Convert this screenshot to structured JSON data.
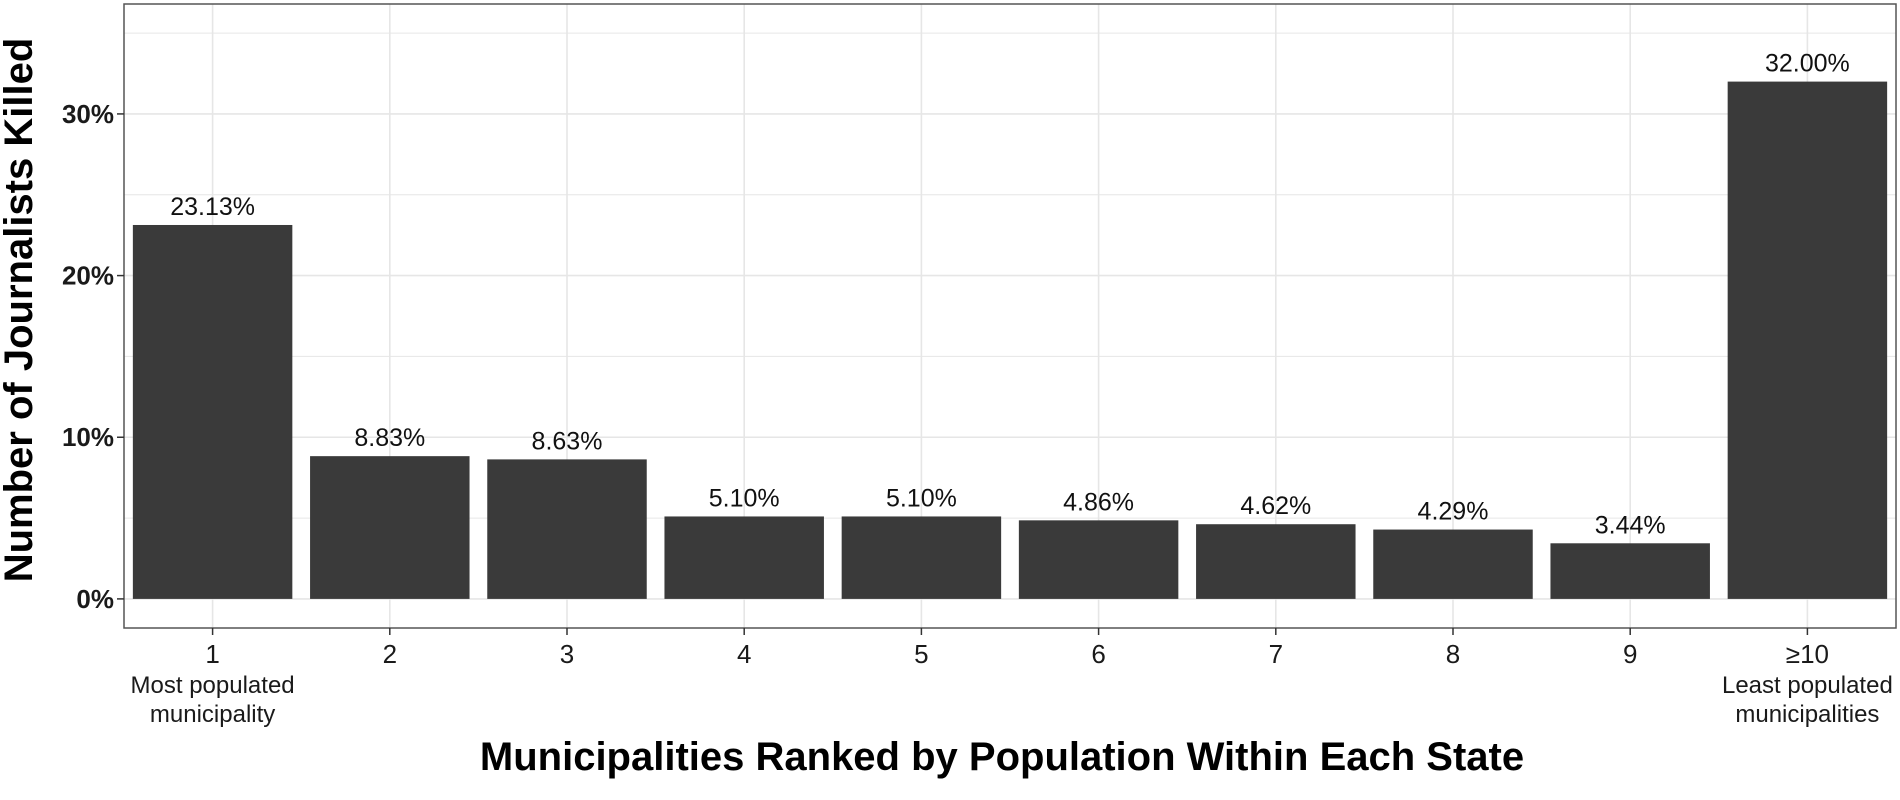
{
  "chart_data": {
    "type": "bar",
    "title": "",
    "xlabel": "Municipalities Ranked by Population Within Each State",
    "ylabel": "Number of Journalists Killed",
    "categories": [
      "1",
      "2",
      "3",
      "4",
      "5",
      "6",
      "7",
      "8",
      "9",
      "≥10"
    ],
    "category_sublabels": [
      [
        "Most populated",
        "municipality"
      ],
      [],
      [],
      [],
      [],
      [],
      [],
      [],
      [],
      [
        "Least populated",
        "municipalities"
      ]
    ],
    "values": [
      23.13,
      8.83,
      8.63,
      5.1,
      5.1,
      4.86,
      4.62,
      4.29,
      3.44,
      32.0
    ],
    "data_labels": [
      "23.13%",
      "8.83%",
      "8.63%",
      "5.10%",
      "5.10%",
      "4.86%",
      "4.62%",
      "4.29%",
      "3.44%",
      "32.00%"
    ],
    "yticks": [
      0,
      10,
      20,
      30
    ],
    "ytick_labels": [
      "0%",
      "10%",
      "20%",
      "30%"
    ],
    "ylim": [
      -1.8,
      36.8
    ],
    "grid": true,
    "legend": "none",
    "colors": {
      "bar": "#3a3a3a",
      "grid": "#e6e6e6",
      "frame": "#555555"
    }
  }
}
